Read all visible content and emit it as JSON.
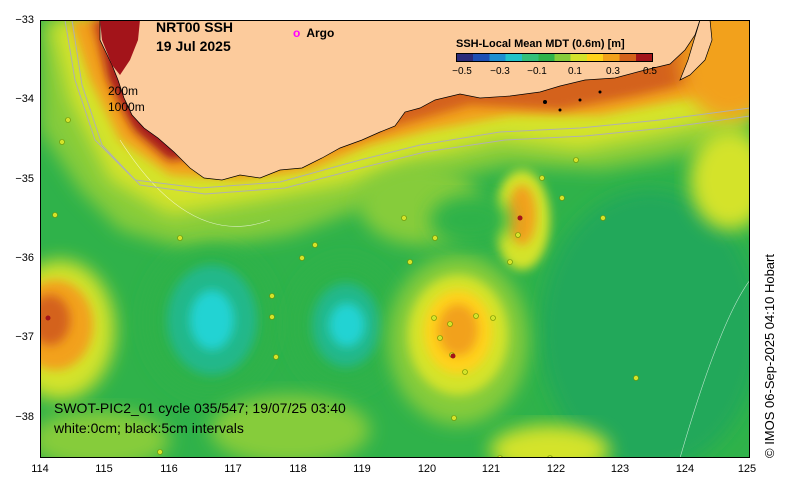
{
  "title": {
    "product": "NRT00 SSH",
    "date": "19 Jul 2025"
  },
  "legend": {
    "argo_symbol": "o",
    "argo_label": "Argo",
    "argo_color": "#ff00ff"
  },
  "colorbar": {
    "title": "SSH-Local Mean MDT (0.6m) [m]",
    "ticks": [
      "−0.5",
      "−0.3",
      "−0.1",
      "0.1",
      "0.3",
      "0.5"
    ],
    "colors": [
      "#2b2b7a",
      "#1f4fb4",
      "#1e8fd0",
      "#22c3c9",
      "#33c07a",
      "#2fb24a",
      "#86cc3a",
      "#d4e32a",
      "#ffd21a",
      "#f2a11a",
      "#d4621a",
      "#a3141a"
    ]
  },
  "isobaths": {
    "shallow": "200m",
    "deep": "1000m"
  },
  "axes": {
    "x_ticks": [
      "114",
      "115",
      "116",
      "117",
      "118",
      "119",
      "120",
      "121",
      "122",
      "123",
      "124",
      "125"
    ],
    "y_ticks": [
      "−33",
      "−34",
      "−35",
      "−36",
      "−37",
      "−38"
    ],
    "lon_range": [
      114,
      125
    ],
    "lat_range": [
      -38.5,
      -33
    ]
  },
  "swath": {
    "line1": "SWOT-PIC2_01 cycle 035/547; 19/07/25 03:40",
    "line2": "white:0cm; black:5cm intervals"
  },
  "credit": "© IMOS 06-Sep-2025 04:10 Hobart",
  "colors": {
    "land": "#fccb9c",
    "ocean_base": "#2fb24a"
  }
}
